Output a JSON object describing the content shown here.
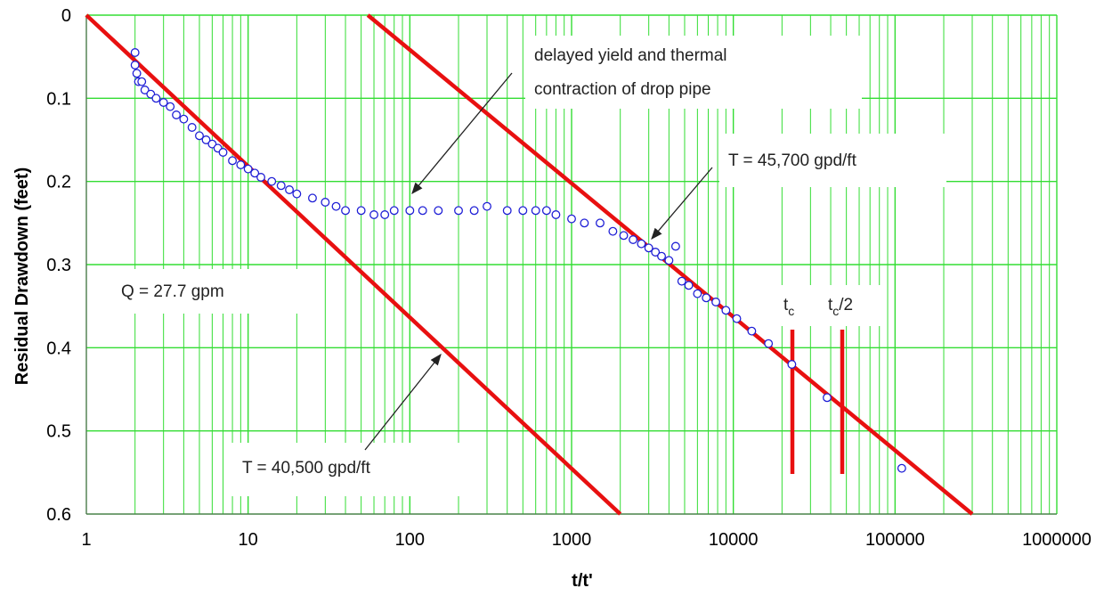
{
  "chart_data": {
    "type": "scatter",
    "xlabel": "t/t'",
    "ylabel": "Residual Drawdown (feet)",
    "x_scale": "log",
    "xlim": [
      1,
      1000000
    ],
    "ylim": [
      0,
      0.6
    ],
    "y_inverted": true,
    "grid": true,
    "x_ticks": [
      1,
      10,
      100,
      1000,
      10000,
      100000,
      1000000
    ],
    "x_tick_labels": [
      "1",
      "10",
      "100",
      "1000",
      "10000",
      "100000",
      "1000000"
    ],
    "y_ticks": [
      0,
      0.1,
      0.2,
      0.3,
      0.4,
      0.5,
      0.6
    ],
    "y_tick_labels": [
      "0",
      "0.1",
      "0.2",
      "0.3",
      "0.4",
      "0.5",
      "0.6"
    ],
    "colors": {
      "points": "#1f1fd6",
      "lines": "#e81010",
      "grid": "#33dd33"
    },
    "series": [
      {
        "x": [
          2.0,
          2.0,
          2.05,
          2.1,
          2.2,
          2.3,
          2.5,
          2.7,
          3.0,
          3.3,
          3.6,
          4.0,
          4.5,
          5.0,
          5.5,
          6.0,
          6.5,
          7.0,
          8.0,
          9.0,
          10,
          11,
          12,
          14,
          16,
          18,
          20,
          25,
          30,
          35,
          40,
          50,
          60,
          70,
          80,
          100,
          120,
          150,
          200,
          250,
          300,
          400,
          500,
          600,
          700,
          800,
          1000,
          1200,
          1500,
          1800,
          2100,
          2400,
          2700,
          3000,
          3300,
          3600,
          4000,
          4400,
          4800,
          5300,
          6000,
          6800,
          7800,
          9000,
          10500,
          13000,
          16500,
          23000,
          38000,
          110000
        ],
        "y": [
          0.045,
          0.06,
          0.07,
          0.08,
          0.08,
          0.09,
          0.095,
          0.1,
          0.105,
          0.11,
          0.12,
          0.125,
          0.135,
          0.145,
          0.15,
          0.155,
          0.16,
          0.165,
          0.175,
          0.18,
          0.185,
          0.19,
          0.195,
          0.2,
          0.205,
          0.21,
          0.215,
          0.22,
          0.225,
          0.23,
          0.235,
          0.235,
          0.24,
          0.24,
          0.235,
          0.235,
          0.235,
          0.235,
          0.235,
          0.235,
          0.23,
          0.235,
          0.235,
          0.235,
          0.235,
          0.24,
          0.245,
          0.25,
          0.25,
          0.26,
          0.265,
          0.27,
          0.275,
          0.28,
          0.285,
          0.29,
          0.295,
          0.278,
          0.32,
          0.325,
          0.335,
          0.34,
          0.345,
          0.355,
          0.365,
          0.38,
          0.395,
          0.42,
          0.46,
          0.545
        ]
      },
      {
        "x": [
          1,
          2000
        ],
        "y": [
          0.0,
          0.6
        ]
      },
      {
        "x": [
          55,
          300000
        ],
        "y": [
          0.0,
          0.6
        ]
      }
    ],
    "annotations": {
      "a1": "delayed yield and thermal",
      "a2": "contraction of drop pipe",
      "t1": "T = 45,700 gpd/ft",
      "t2": "T = 40,500 gpd/ft",
      "q": "Q = 27.7 gpm",
      "tc": "t",
      "tc_sub": "c",
      "tc2": "t",
      "tc2_sub": "c",
      "tc2_suffix": "/2"
    }
  }
}
